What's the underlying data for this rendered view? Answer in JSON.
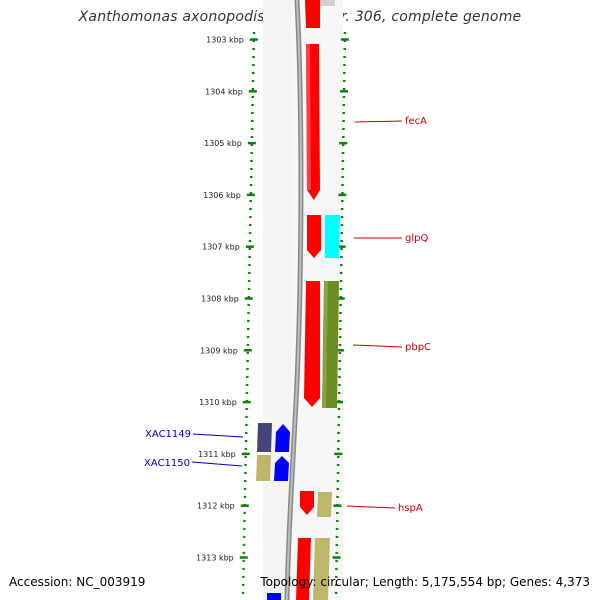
{
  "title": "Xanthomonas axonopodis pv. citri str. 306, complete genome",
  "accession": "Accession: NC_003919",
  "summary": "Topology: circular; Length: 5,175,554 bp; Genes: 4,373",
  "colors": {
    "ruler": "#0f7f0f",
    "forward_label": "#cc0000",
    "reverse_label": "#0000cc",
    "backbone": "#808080"
  },
  "kbp_ticks": [
    {
      "kbp": 1303,
      "label": "1303 kbp"
    },
    {
      "kbp": 1304,
      "label": "1304 kbp"
    },
    {
      "kbp": 1305,
      "label": "1305 kbp"
    },
    {
      "kbp": 1306,
      "label": "1306 kbp"
    },
    {
      "kbp": 1307,
      "label": "1307 kbp"
    },
    {
      "kbp": 1308,
      "label": "1308 kbp"
    },
    {
      "kbp": 1309,
      "label": "1309 kbp"
    },
    {
      "kbp": 1310,
      "label": "1310 kbp"
    },
    {
      "kbp": 1311,
      "label": "1311 kbp"
    },
    {
      "kbp": 1312,
      "label": "1312 kbp"
    },
    {
      "kbp": 1313,
      "label": "1313 kbp"
    }
  ],
  "gene_labels": [
    {
      "text": "fecA",
      "strand": "forward"
    },
    {
      "text": "glpQ",
      "strand": "forward"
    },
    {
      "text": "pbpC",
      "strand": "forward"
    },
    {
      "text": "XAC1149",
      "strand": "reverse"
    },
    {
      "text": "XAC1150",
      "strand": "reverse"
    },
    {
      "text": "hspA",
      "strand": "forward"
    }
  ]
}
